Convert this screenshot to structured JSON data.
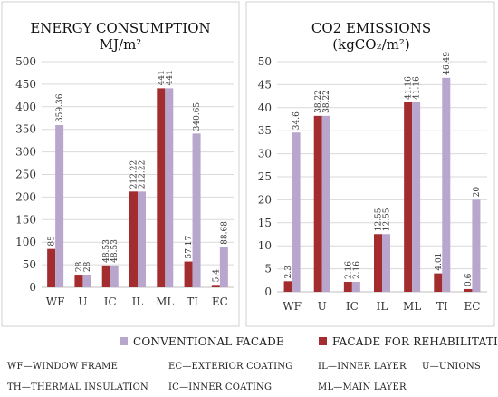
{
  "colors": {
    "conventional": "#b8a6cc",
    "rehabilitation": "#a32c2e"
  },
  "legend": {
    "conventional": "CONVENTIONAL FACADE",
    "rehabilitation": "FACADE FOR REHABILITATION"
  },
  "abbreviations": [
    "WF—WINDOW FRAME",
    "EC—EXTERIOR COATING",
    "IL—INNER LAYER",
    "U—UNIONS",
    "TH—THERMAL INSULATION",
    "IC—INNER COATING",
    "ML—MAIN LAYER"
  ],
  "chart_data": [
    {
      "type": "bar",
      "title": "ENERGY CONSUMPTION",
      "subtitle": "MJ/m²",
      "categories": [
        "WF",
        "U",
        "IC",
        "IL",
        "ML",
        "TI",
        "EC"
      ],
      "ylim": [
        0,
        500
      ],
      "yticks": [
        0,
        50,
        100,
        150,
        200,
        250,
        300,
        350,
        400,
        450,
        500
      ],
      "grid": true,
      "series": [
        {
          "name": "FACADE FOR REHABILITATION",
          "values": [
            85,
            28,
            48.53,
            212.22,
            441,
            57.17,
            5.4
          ],
          "labels": [
            "85",
            "28",
            "48.53",
            "212.22",
            "441",
            "57.17",
            "5.4"
          ]
        },
        {
          "name": "CONVENTIONAL FACADE",
          "values": [
            359.36,
            28,
            48.53,
            212.22,
            441,
            340.65,
            88.68
          ],
          "labels": [
            "359.36",
            "28",
            "48.53",
            "212.22",
            "441",
            "340.65",
            "88.68"
          ]
        }
      ]
    },
    {
      "type": "bar",
      "title": "CO2 EMISSIONS",
      "subtitle": "(kgCO₂/m²)",
      "categories": [
        "WF",
        "U",
        "IC",
        "IL",
        "ML",
        "TI",
        "EC"
      ],
      "ylim": [
        0,
        50
      ],
      "yticks": [
        0,
        5,
        10,
        15,
        20,
        25,
        30,
        35,
        40,
        45,
        50
      ],
      "grid": true,
      "series": [
        {
          "name": "FACADE FOR REHABILITATION",
          "values": [
            2.3,
            38.22,
            2.16,
            12.55,
            41.16,
            4.01,
            0.6
          ],
          "labels": [
            "2.3",
            "38.22",
            "2.16",
            "12.55",
            "41.16",
            "4.01",
            "0.6"
          ]
        },
        {
          "name": "CONVENTIONAL FACADE",
          "values": [
            34.6,
            38.22,
            2.16,
            12.55,
            41.16,
            46.49,
            20
          ],
          "labels": [
            "34.6",
            "38.22",
            "2.16",
            "12.55",
            "41.16",
            "46.49",
            "20"
          ]
        }
      ]
    }
  ]
}
